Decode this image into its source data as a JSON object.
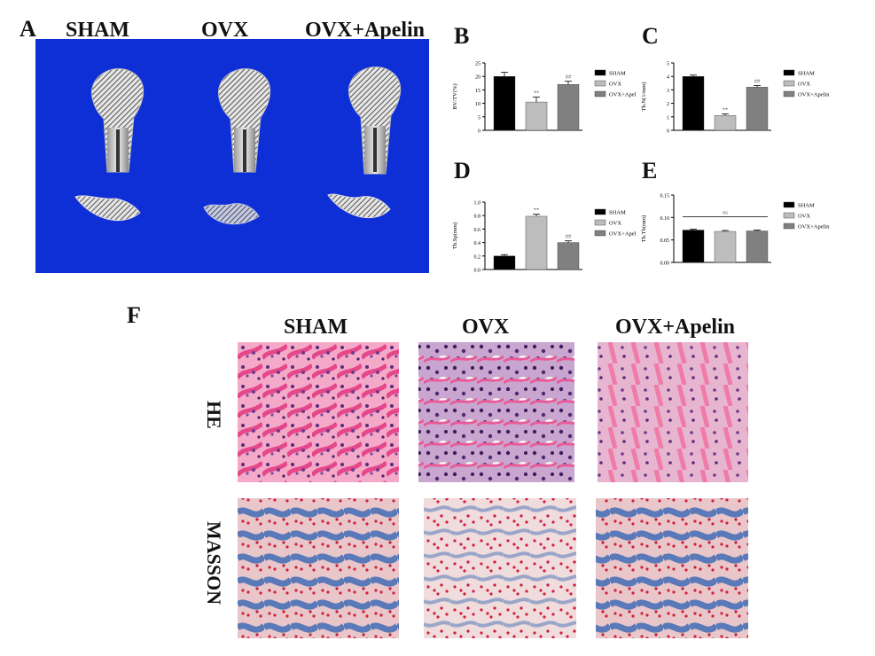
{
  "figure": {
    "panel_letters": {
      "A": "A",
      "B": "B",
      "C": "C",
      "D": "D",
      "E": "E",
      "F": "F"
    },
    "groups": [
      "SHAM",
      "OVX",
      "OVX+Apelin"
    ],
    "histology_rows": [
      "HE",
      "MASSON"
    ],
    "colors": {
      "ct_background": "#0f2fd6",
      "sham": "#000000",
      "ovx": "#bdbdbd",
      "ovx_apelin": "#808080",
      "he_stain": "#e86aa0",
      "masson_stain": "#5a79b8"
    }
  },
  "chart_data": [
    {
      "panel": "B",
      "type": "bar",
      "ylabel": "BV/TV(%)",
      "categories": [
        "SHAM",
        "OVX",
        "OVX+Apelin"
      ],
      "values": [
        20,
        10.5,
        17
      ],
      "errors": [
        1.5,
        1.8,
        1.2
      ],
      "annotations": [
        "",
        "**",
        "##"
      ],
      "ylim": [
        0,
        25
      ],
      "yticks": [
        "0",
        "5",
        "10",
        "15",
        "20",
        "25"
      ],
      "legend": [
        "SHAM",
        "OVX",
        "OVX+Apelin"
      ],
      "legend_position": "right"
    },
    {
      "panel": "C",
      "type": "bar",
      "ylabel": "Tb.N(1/mm)",
      "categories": [
        "SHAM",
        "OVX",
        "OVX+Apelin"
      ],
      "values": [
        4.0,
        1.1,
        3.2
      ],
      "errors": [
        0.1,
        0.12,
        0.12
      ],
      "annotations": [
        "",
        "**",
        "##"
      ],
      "ylim": [
        0,
        5
      ],
      "yticks": [
        "0",
        "1",
        "2",
        "3",
        "4",
        "5"
      ],
      "legend": [
        "SHAM",
        "OVX",
        "OVX+Apelin"
      ],
      "legend_position": "right"
    },
    {
      "panel": "D",
      "type": "bar",
      "ylabel": "Tb.Sp(mm)",
      "categories": [
        "SHAM",
        "OVX",
        "OVX+Apelin"
      ],
      "values": [
        0.2,
        0.79,
        0.4
      ],
      "errors": [
        0.02,
        0.03,
        0.025
      ],
      "annotations": [
        "",
        "**",
        "##"
      ],
      "ylim": [
        0,
        1.0
      ],
      "yticks": [
        "0.0",
        "0.2",
        "0.4",
        "0.6",
        "0.8",
        "1.0"
      ],
      "legend": [
        "SHAM",
        "OVX",
        "OVX+Apelin"
      ],
      "legend_position": "right"
    },
    {
      "panel": "E",
      "type": "bar",
      "ylabel": "Tb.Th(mm)",
      "categories": [
        "SHAM",
        "OVX",
        "OVX+Apelin"
      ],
      "values": [
        0.072,
        0.069,
        0.07
      ],
      "errors": [
        0.002,
        0.002,
        0.002
      ],
      "annotations": [
        "ns"
      ],
      "ylim": [
        0,
        0.15
      ],
      "yticks": [
        "0.00",
        "0.05",
        "0.10",
        "0.15"
      ],
      "legend": [
        "SHAM",
        "OVX",
        "OVX+Apelin"
      ],
      "legend_position": "right"
    }
  ]
}
